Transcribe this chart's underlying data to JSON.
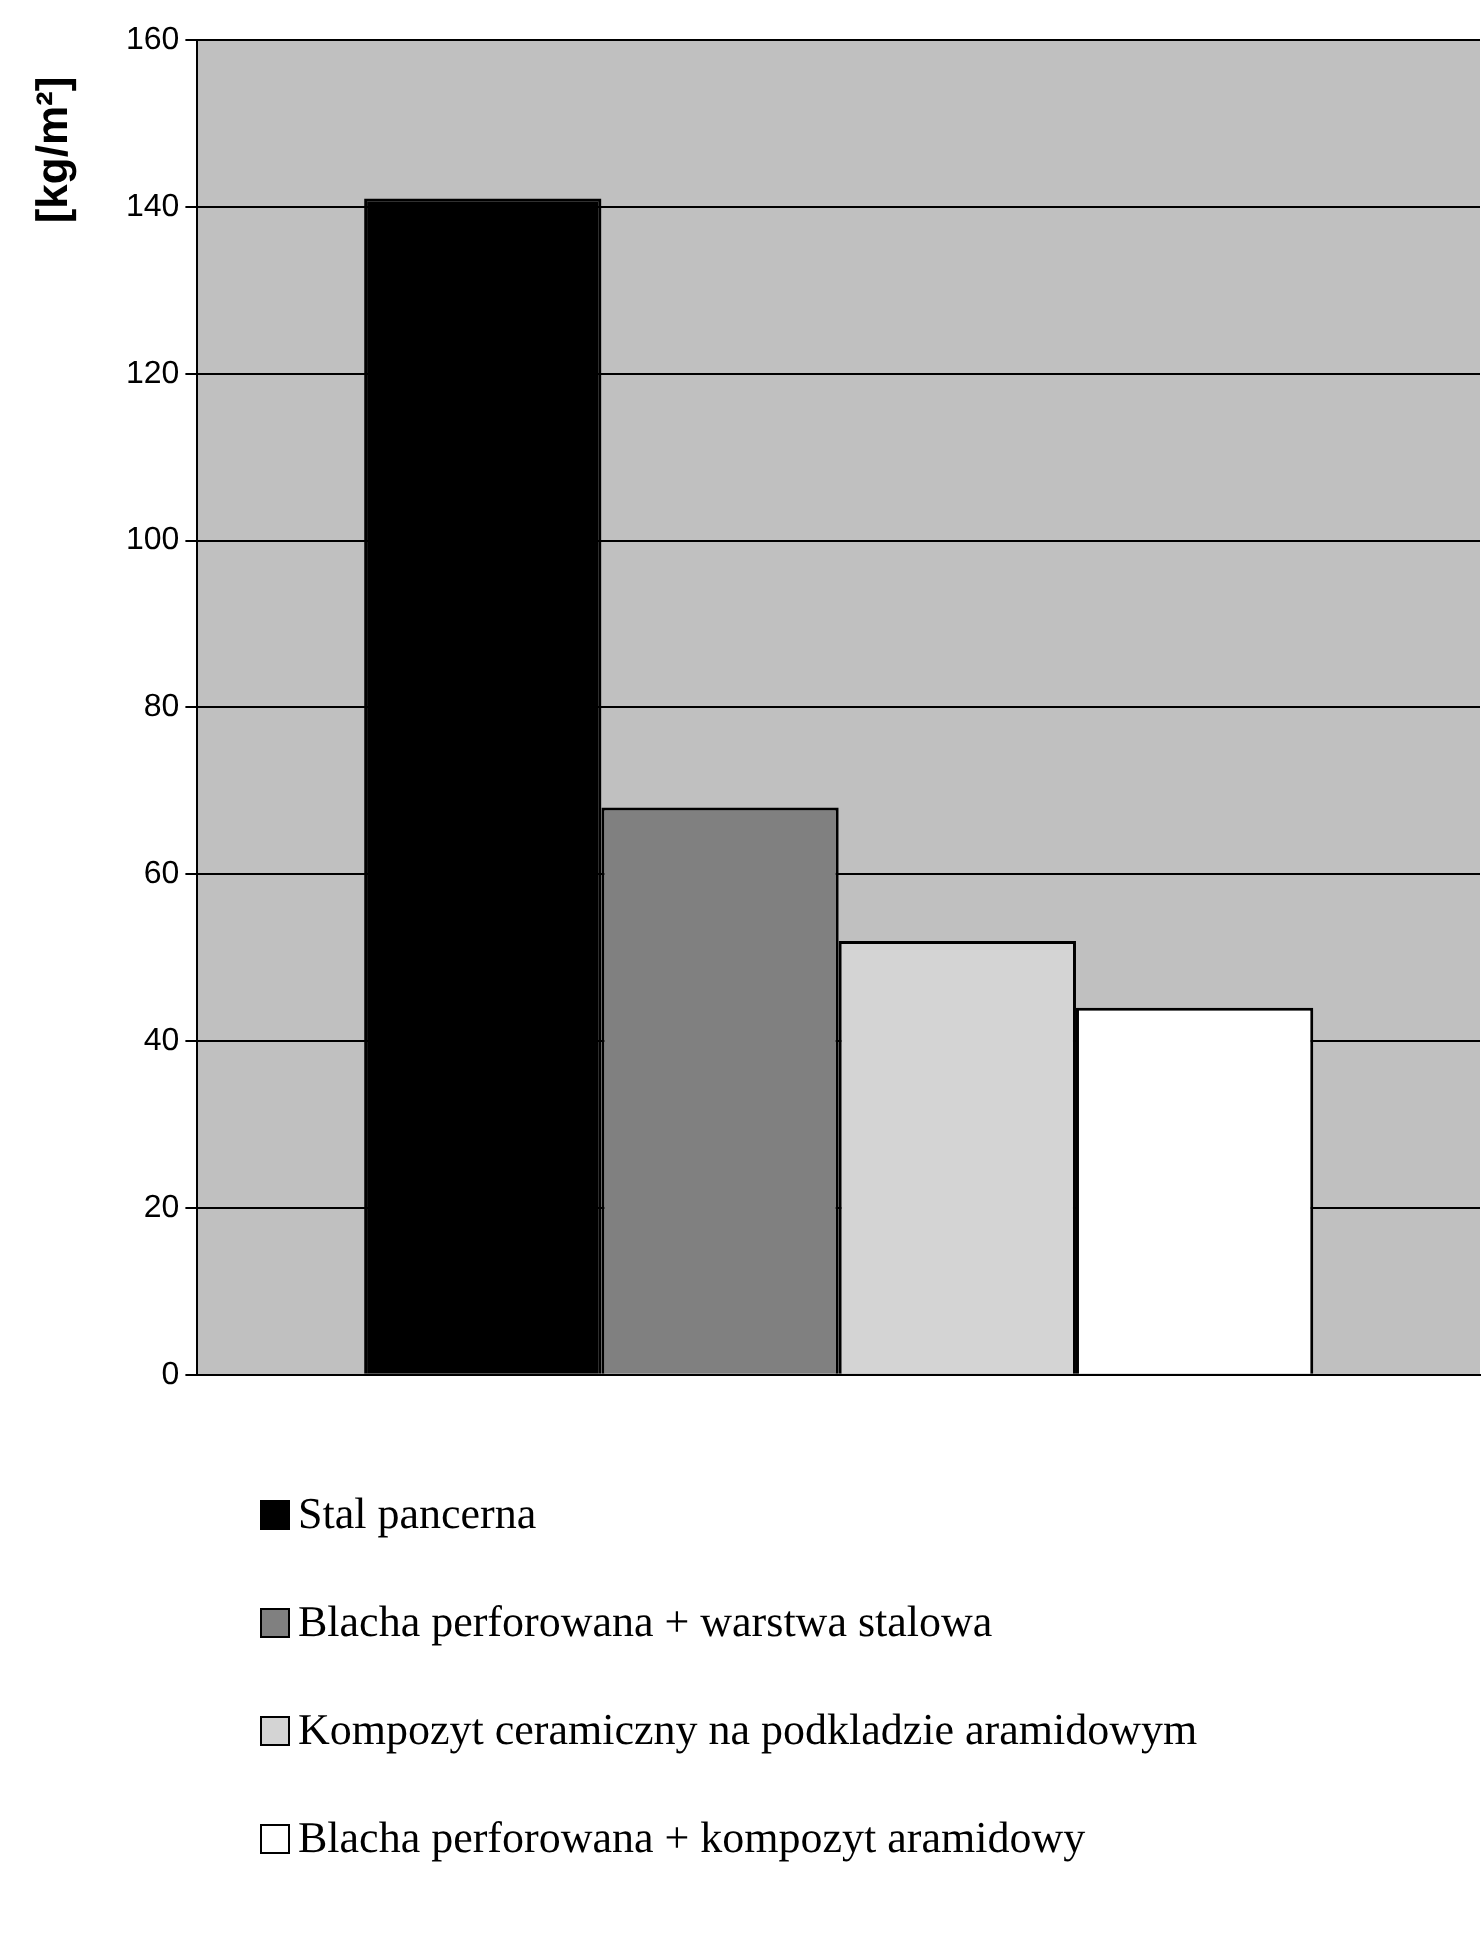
{
  "chart_data": {
    "type": "bar",
    "ylabel": "[kg/m²]",
    "categories": [
      null
    ],
    "series": [
      {
        "name": "Stal pancerna",
        "color": "#000000",
        "values": [
          141
        ]
      },
      {
        "name": "Blacha perforowana + warstwa stalowa",
        "color": "#808080",
        "values": [
          68
        ]
      },
      {
        "name": "Kompozyt ceramiczny na podkladzie aramidowym",
        "color": "#d4d4d4",
        "values": [
          52
        ]
      },
      {
        "name": "Blacha perforowana + kompozyt aramidowy",
        "color": "#ffffff",
        "values": [
          44
        ]
      }
    ],
    "ylim": [
      0,
      160
    ],
    "yticks": [
      0,
      20,
      40,
      60,
      80,
      100,
      120,
      140,
      160
    ],
    "grid": "y",
    "legend": "bottom"
  }
}
